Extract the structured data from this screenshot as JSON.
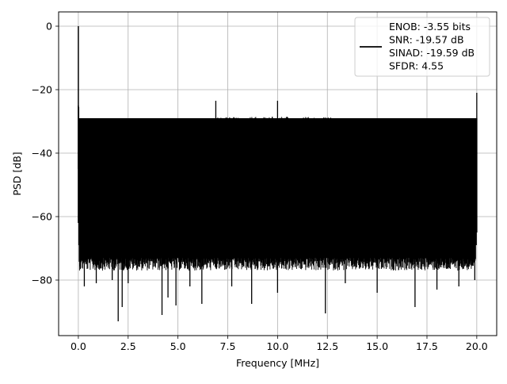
{
  "chart_data": {
    "type": "line",
    "title": "",
    "xlabel": "Frequency [MHz]",
    "ylabel": "PSD [dB]",
    "xlim": [
      -0.99,
      21.0
    ],
    "ylim": [
      -97.5,
      4.5
    ],
    "xticks": [
      0.0,
      2.5,
      5.0,
      7.5,
      10.0,
      12.5,
      15.0,
      17.5,
      20.0
    ],
    "xtick_labels": [
      "0.0",
      "2.5",
      "5.0",
      "7.5",
      "10.0",
      "12.5",
      "15.0",
      "17.5",
      "20.0"
    ],
    "yticks": [
      0,
      -20,
      -40,
      -60,
      -80
    ],
    "ytick_labels": [
      "0",
      "−20",
      "−40",
      "−60",
      "−80"
    ],
    "grid": true,
    "legend_position": "top-right",
    "series_color": "#000000",
    "series": [
      {
        "name": "ENOB: -3.55 bits\nSNR: -19.57 dB\nSINAD: -19.59 dB\nSFDR: 4.55",
        "x_range": [
          0.0,
          20.0
        ],
        "noise_floor_top_db": -31,
        "noise_floor_bottom_db": -73,
        "dc_peak": {
          "x": 0.0,
          "y": 0.0
        },
        "spurs": [
          {
            "x": 0.02,
            "y": -25.5
          },
          {
            "x": 6.9,
            "y": -23.5
          },
          {
            "x": 10.0,
            "y": -23.5
          },
          {
            "x": 20.0,
            "y": -21.0
          }
        ],
        "deep_nulls": [
          {
            "x": 0.3,
            "y": -82
          },
          {
            "x": 0.9,
            "y": -81
          },
          {
            "x": 1.7,
            "y": -80
          },
          {
            "x": 2.0,
            "y": -93
          },
          {
            "x": 2.2,
            "y": -88.5
          },
          {
            "x": 2.5,
            "y": -81
          },
          {
            "x": 4.2,
            "y": -91
          },
          {
            "x": 4.5,
            "y": -85.5
          },
          {
            "x": 4.9,
            "y": -88
          },
          {
            "x": 5.6,
            "y": -82
          },
          {
            "x": 6.2,
            "y": -87.5
          },
          {
            "x": 7.7,
            "y": -82
          },
          {
            "x": 8.7,
            "y": -87.5
          },
          {
            "x": 10.0,
            "y": -84
          },
          {
            "x": 12.4,
            "y": -90.5
          },
          {
            "x": 13.4,
            "y": -81
          },
          {
            "x": 15.0,
            "y": -84
          },
          {
            "x": 16.9,
            "y": -88.5
          },
          {
            "x": 18.0,
            "y": -83
          },
          {
            "x": 19.1,
            "y": -82
          },
          {
            "x": 19.9,
            "y": -80
          }
        ]
      }
    ]
  },
  "legend": {
    "lines": [
      "ENOB: -3.55 bits",
      "SNR: -19.57 dB",
      "SINAD: -19.59 dB",
      "SFDR: 4.55"
    ]
  }
}
